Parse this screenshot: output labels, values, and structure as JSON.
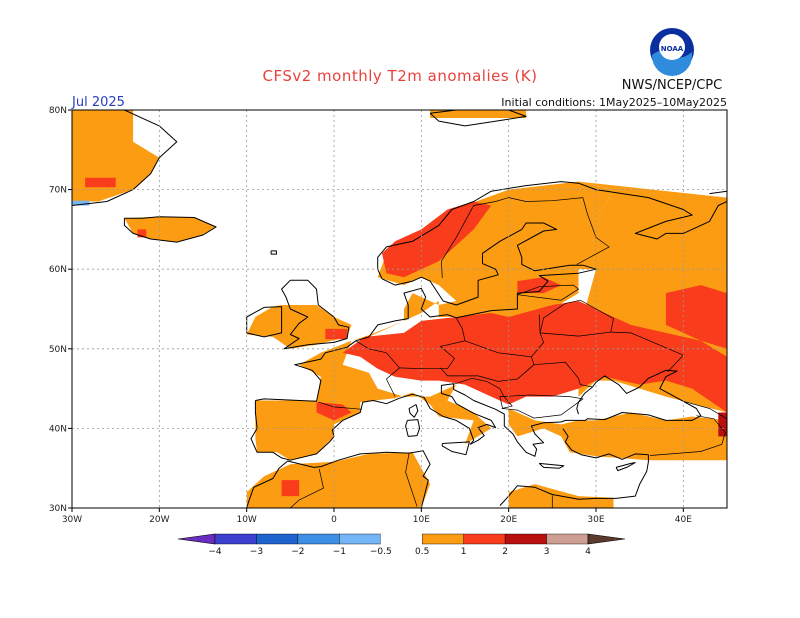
{
  "header": {
    "title": "CFSv2 monthly T2m anomalies (K)",
    "agency": "NWS/NCEP/CPC",
    "logo_text": "NOAA",
    "period": "Jul 2025",
    "initial_conditions": "Initial conditions: 1May2025–10May2025"
  },
  "map": {
    "lon_range": [
      -30,
      45
    ],
    "lat_range": [
      30,
      80
    ],
    "lon_ticks": [
      {
        "value": -30,
        "label": "30W"
      },
      {
        "value": -20,
        "label": "20W"
      },
      {
        "value": -10,
        "label": "10W"
      },
      {
        "value": 0,
        "label": "0"
      },
      {
        "value": 10,
        "label": "10E"
      },
      {
        "value": 20,
        "label": "20E"
      },
      {
        "value": 30,
        "label": "30E"
      },
      {
        "value": 40,
        "label": "40E"
      }
    ],
    "lat_ticks": [
      {
        "value": 30,
        "label": "30N"
      },
      {
        "value": 40,
        "label": "40N"
      },
      {
        "value": 50,
        "label": "50N"
      },
      {
        "value": 60,
        "label": "60N"
      },
      {
        "value": 70,
        "label": "70N"
      },
      {
        "value": 80,
        "label": "80N"
      }
    ],
    "anomaly_regions": [
      {
        "name": "greenland",
        "level": "0.5-1",
        "lonlat": [
          [
            -30,
            80
          ],
          [
            -23,
            80
          ],
          [
            -23,
            76
          ],
          [
            -20,
            74
          ],
          [
            -21,
            72
          ],
          [
            -23,
            70
          ],
          [
            -27,
            68.5
          ],
          [
            -30,
            68.5
          ]
        ]
      },
      {
        "name": "greenland-cold",
        "level": "-1--0.5",
        "lonlat": [
          [
            -30,
            68.6
          ],
          [
            -28,
            68.6
          ],
          [
            -28,
            68
          ],
          [
            -30,
            68
          ]
        ]
      },
      {
        "name": "greenland-warm",
        "level": "1-2",
        "lonlat": [
          [
            -28.5,
            71.5
          ],
          [
            -25,
            71.5
          ],
          [
            -25,
            70.3
          ],
          [
            -28.5,
            70.3
          ]
        ]
      },
      {
        "name": "iceland",
        "level": "0.5-1",
        "lonlat": [
          [
            -24,
            66.4
          ],
          [
            -20,
            66.6
          ],
          [
            -16,
            66.5
          ],
          [
            -13.5,
            65.3
          ],
          [
            -15,
            64.3
          ],
          [
            -18,
            63.4
          ],
          [
            -21,
            63.8
          ],
          [
            -23,
            64.5
          ]
        ]
      },
      {
        "name": "iceland-warm",
        "level": "1-2",
        "lonlat": [
          [
            -22.5,
            65
          ],
          [
            -21.5,
            65
          ],
          [
            -21.5,
            64
          ],
          [
            -22.5,
            64
          ]
        ]
      },
      {
        "name": "svalbard-franz",
        "level": "0.5-1",
        "lonlat": [
          [
            11,
            80
          ],
          [
            22,
            80
          ],
          [
            22,
            79
          ],
          [
            11,
            79
          ]
        ]
      },
      {
        "name": "ireland-uk",
        "level": "0.5-1",
        "lonlat": [
          [
            -6,
            55.5
          ],
          [
            -2,
            55.5
          ],
          [
            0,
            54
          ],
          [
            2,
            53
          ],
          [
            1.5,
            51.5
          ],
          [
            -2,
            50.5
          ],
          [
            -5,
            50
          ],
          [
            -7,
            51.5
          ],
          [
            -10,
            51.8
          ],
          [
            -9,
            54
          ],
          [
            -7,
            55.3
          ]
        ]
      },
      {
        "name": "uk-south-warm",
        "level": "1-2",
        "lonlat": [
          [
            -1,
            52.5
          ],
          [
            1.5,
            52.5
          ],
          [
            1.5,
            51.2
          ],
          [
            -1,
            51.2
          ]
        ]
      },
      {
        "name": "iberia-france",
        "level": "0.5-1",
        "lonlat": [
          [
            -9,
            43.5
          ],
          [
            -2,
            43.5
          ],
          [
            -1.5,
            46.5
          ],
          [
            -4,
            48
          ],
          [
            -1.5,
            49.5
          ],
          [
            2,
            51
          ],
          [
            4,
            51.5
          ],
          [
            8,
            53.5
          ],
          [
            10,
            54.5
          ],
          [
            12,
            56
          ],
          [
            12,
            54
          ],
          [
            14,
            54
          ],
          [
            20,
            54
          ],
          [
            25,
            55
          ],
          [
            28,
            57
          ],
          [
            28,
            60
          ],
          [
            30,
            60
          ],
          [
            30,
            66
          ],
          [
            32,
            70
          ],
          [
            28,
            71
          ],
          [
            20,
            70
          ],
          [
            15,
            68
          ],
          [
            12,
            66
          ],
          [
            10,
            63
          ],
          [
            6,
            62
          ],
          [
            5,
            59
          ],
          [
            8,
            58
          ],
          [
            10,
            59
          ],
          [
            12,
            58
          ],
          [
            14,
            56
          ],
          [
            12,
            55.5
          ],
          [
            9,
            57
          ],
          [
            8,
            55
          ],
          [
            8,
            53.5
          ],
          [
            4,
            51.7
          ],
          [
            2,
            51
          ],
          [
            1,
            48
          ],
          [
            4,
            47
          ],
          [
            5,
            45
          ],
          [
            8,
            44
          ],
          [
            11,
            44
          ],
          [
            14,
            45.5
          ],
          [
            13,
            43.5
          ],
          [
            16,
            42
          ],
          [
            18,
            40
          ],
          [
            15,
            38
          ],
          [
            16,
            41
          ],
          [
            12,
            41.5
          ],
          [
            11,
            43
          ],
          [
            9,
            44.5
          ],
          [
            7,
            43.8
          ],
          [
            3,
            43.3
          ],
          [
            3,
            42
          ],
          [
            0,
            40.5
          ],
          [
            0,
            39
          ],
          [
            -2,
            36.8
          ],
          [
            -5,
            36
          ],
          [
            -6.5,
            37
          ],
          [
            -8.8,
            37
          ],
          [
            -9,
            38.7
          ]
        ]
      },
      {
        "name": "balkans-turkey",
        "level": "0.5-1",
        "lonlat": [
          [
            20,
            42.5
          ],
          [
            23,
            41
          ],
          [
            26,
            40.5
          ],
          [
            28,
            41
          ],
          [
            30,
            41
          ],
          [
            34,
            42
          ],
          [
            38,
            41
          ],
          [
            41,
            41.5
          ],
          [
            45,
            41
          ],
          [
            45,
            36
          ],
          [
            36,
            36
          ],
          [
            30,
            36.5
          ],
          [
            27,
            37
          ],
          [
            26,
            39
          ],
          [
            24,
            40
          ],
          [
            21,
            39
          ],
          [
            20,
            40.5
          ]
        ]
      },
      {
        "name": "russia-east",
        "level": "0.5-1",
        "lonlat": [
          [
            28,
            71
          ],
          [
            45,
            69
          ],
          [
            45,
            42
          ],
          [
            38,
            44
          ],
          [
            35,
            45
          ],
          [
            32,
            46
          ],
          [
            30,
            46
          ],
          [
            28,
            44
          ],
          [
            28,
            52
          ],
          [
            30,
            60
          ],
          [
            30,
            66
          ],
          [
            32,
            70
          ]
        ]
      },
      {
        "name": "north-africa",
        "level": "0.5-1",
        "lonlat": [
          [
            -10,
            30
          ],
          [
            -10,
            32
          ],
          [
            -8,
            34
          ],
          [
            -5,
            35.5
          ],
          [
            0,
            35.8
          ],
          [
            4,
            36.8
          ],
          [
            9,
            37
          ],
          [
            10,
            35
          ],
          [
            11,
            33
          ],
          [
            10,
            30
          ]
        ]
      },
      {
        "name": "libya-egypt",
        "level": "0.5-1",
        "lonlat": [
          [
            20,
            30
          ],
          [
            20,
            32
          ],
          [
            23,
            33
          ],
          [
            28,
            31.5
          ],
          [
            32,
            31.3
          ],
          [
            32,
            30
          ]
        ]
      },
      {
        "name": "central-europe-warm",
        "level": "1-2",
        "lonlat": [
          [
            3.5,
            51.5
          ],
          [
            8,
            52
          ],
          [
            10,
            53.5
          ],
          [
            14,
            54
          ],
          [
            18,
            54.5
          ],
          [
            20,
            54
          ],
          [
            25,
            55.5
          ],
          [
            28,
            56
          ],
          [
            30,
            55
          ],
          [
            34,
            53
          ],
          [
            38,
            52
          ],
          [
            42,
            51
          ],
          [
            45,
            49
          ],
          [
            45,
            42
          ],
          [
            41,
            45
          ],
          [
            38,
            46
          ],
          [
            35,
            45.5
          ],
          [
            31,
            46.5
          ],
          [
            28,
            45
          ],
          [
            25,
            44
          ],
          [
            22,
            44
          ],
          [
            20,
            43
          ],
          [
            18,
            44
          ],
          [
            15,
            45.5
          ],
          [
            12,
            46
          ],
          [
            10,
            46
          ],
          [
            7,
            46.5
          ],
          [
            5,
            47.5
          ],
          [
            3,
            49
          ],
          [
            1,
            49.5
          ]
        ]
      },
      {
        "name": "scandinavia-warm",
        "level": "1-2",
        "lonlat": [
          [
            5.5,
            62
          ],
          [
            7,
            63.5
          ],
          [
            10,
            65
          ],
          [
            13,
            67.5
          ],
          [
            16,
            68.5
          ],
          [
            18,
            68
          ],
          [
            16,
            65
          ],
          [
            14,
            63
          ],
          [
            12,
            61
          ],
          [
            10,
            60
          ],
          [
            8,
            59
          ],
          [
            6,
            59.5
          ]
        ]
      },
      {
        "name": "russia-ne-warm",
        "level": "1-2",
        "lonlat": [
          [
            38,
            57
          ],
          [
            42,
            58
          ],
          [
            45,
            57
          ],
          [
            45,
            50
          ],
          [
            42,
            51
          ],
          [
            38,
            53
          ]
        ]
      },
      {
        "name": "baltic-warm",
        "level": "1-2",
        "lonlat": [
          [
            21,
            58.5
          ],
          [
            24,
            59
          ],
          [
            26,
            58
          ],
          [
            24,
            57
          ],
          [
            21,
            57
          ]
        ]
      },
      {
        "name": "iberia-warm",
        "level": "1-2",
        "lonlat": [
          [
            -2,
            43.3
          ],
          [
            1,
            43
          ],
          [
            2,
            42
          ],
          [
            0,
            41
          ],
          [
            -2,
            42
          ]
        ]
      },
      {
        "name": "morocco-warm",
        "level": "1-2",
        "lonlat": [
          [
            -6,
            33.5
          ],
          [
            -4,
            33.5
          ],
          [
            -4,
            31.5
          ],
          [
            -6,
            31.5
          ]
        ]
      },
      {
        "name": "caucasus-warm",
        "level": "2-3",
        "lonlat": [
          [
            44,
            42
          ],
          [
            45,
            42
          ],
          [
            45,
            39
          ],
          [
            44,
            39
          ]
        ]
      }
    ],
    "colorbar": {
      "bins": [
        {
          "lo": "-5",
          "hi": "-4",
          "color": "#6b2dbf"
        },
        {
          "lo": "-4",
          "hi": "-3",
          "color": "#3d40cf"
        },
        {
          "lo": "-3",
          "hi": "-2",
          "color": "#1f63cf"
        },
        {
          "lo": "-2",
          "hi": "-1",
          "color": "#3d8fe6"
        },
        {
          "lo": "-1",
          "hi": "-0.5",
          "color": "#73b5f5"
        },
        {
          "lo": "-0.5",
          "hi": "0.5",
          "color": "#ffffff"
        },
        {
          "lo": "0.5",
          "hi": "1",
          "color": "#fb9c12"
        },
        {
          "lo": "1",
          "hi": "2",
          "color": "#f93c1c"
        },
        {
          "lo": "2",
          "hi": "3",
          "color": "#b80f0f"
        },
        {
          "lo": "3",
          "hi": "4",
          "color": "#cd9e92"
        },
        {
          "lo": "4",
          "hi": "5",
          "color": "#5c3a2b"
        }
      ],
      "labels": [
        "−4",
        "−3",
        "−2",
        "−1",
        "−0.5",
        "0.5",
        "1",
        "2",
        "3",
        "4"
      ]
    }
  }
}
